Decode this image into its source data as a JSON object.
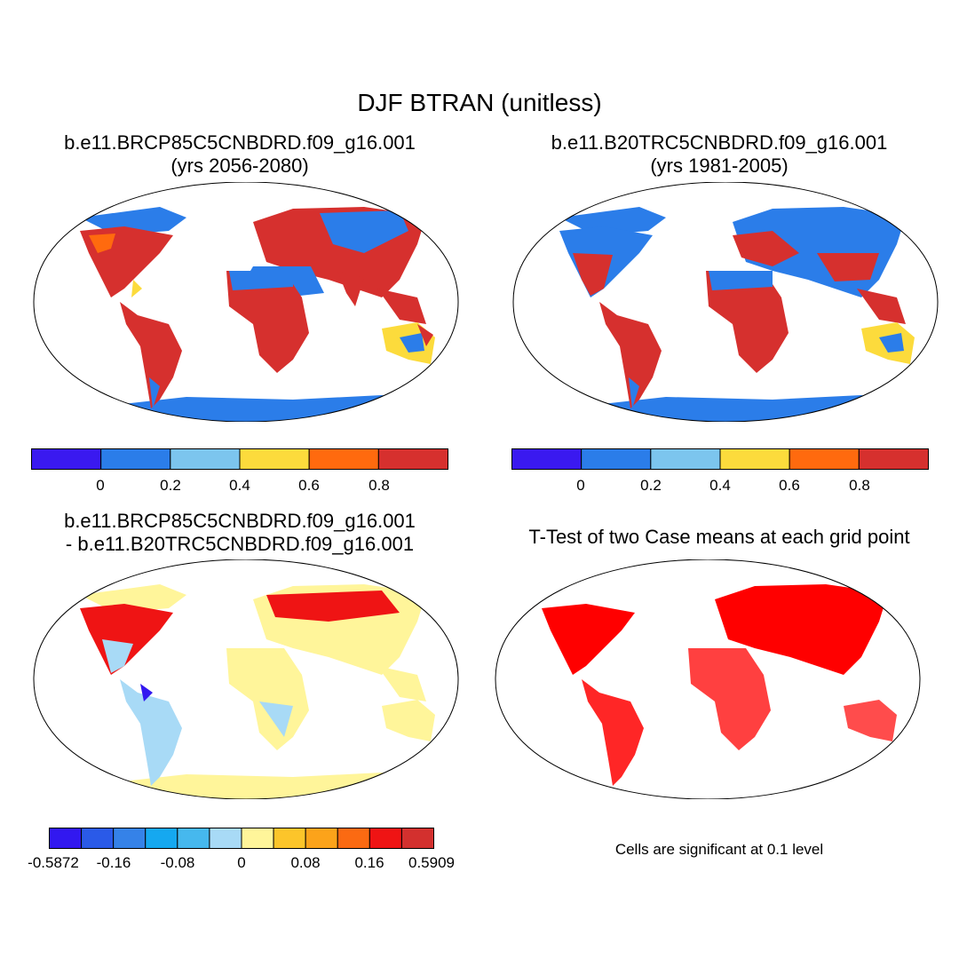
{
  "main_title": "DJF BTRAN (unitless)",
  "panels": [
    {
      "title_line1": "b.e11.BRCP85C5CNBDRD.f09_g16.001",
      "title_line2": "(yrs 2056-2080)"
    },
    {
      "title_line1": "b.e11.B20TRC5CNBDRD.f09_g16.001",
      "title_line2": "(yrs 1981-2005)"
    },
    {
      "title_line1": "b.e11.BRCP85C5CNBDRD.f09_g16.001",
      "title_line2": "- b.e11.B20TRC5CNBDRD.f09_g16.001"
    },
    {
      "title_line1": "T-Test of two Case means at each grid point",
      "title_line2": ""
    }
  ],
  "colorbar_main": {
    "colors": [
      "#3a19f0",
      "#2b7de9",
      "#7cc5ee",
      "#fcdb3c",
      "#ff6a0e",
      "#d6302e"
    ],
    "labels": [
      "0",
      "0.2",
      "0.4",
      "0.6",
      "0.8"
    ]
  },
  "colorbar_diff": {
    "colors": [
      "#3218f0",
      "#2a5ae8",
      "#3582e8",
      "#15a8f0",
      "#46b8ee",
      "#a8daf6",
      "#fff59a",
      "#fcc52a",
      "#fca31a",
      "#fb6a12",
      "#ef1414",
      "#d3302e"
    ],
    "labels": [
      "-0.5872",
      "-0.16",
      "-0.08",
      "0",
      "0.08",
      "0.16",
      "0.5909"
    ]
  },
  "significance_note": "Cells are significant at 0.1 level",
  "colors": {
    "ocean": "#ffffff",
    "coast": "#000000",
    "significant": "#ff0000"
  }
}
